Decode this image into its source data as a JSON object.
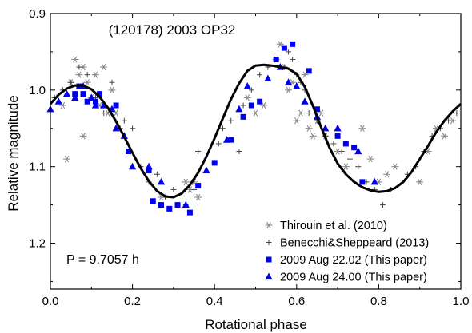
{
  "chart_data": {
    "type": "scatter",
    "title": "(120178) 2003 OP32",
    "xlabel": "Rotational phase",
    "ylabel": "Relative magnitude",
    "xlim": [
      0.0,
      1.0
    ],
    "ylim": [
      0.9,
      1.26
    ],
    "y_inverted": true,
    "x_ticks": [
      "0.0",
      "0.2",
      "0.4",
      "0.6",
      "0.8",
      "1.0"
    ],
    "x_tick_values": [
      0.0,
      0.2,
      0.4,
      0.6,
      0.8,
      1.0
    ],
    "y_ticks": [
      "0.9",
      "1.0",
      "1.1",
      "1.2"
    ],
    "y_tick_values": [
      0.9,
      1.0,
      1.1,
      1.2
    ],
    "grid": false,
    "legend_position": "bottom-right",
    "annotation": "P = 9.7057 h",
    "colors": {
      "blue": "#0000ee",
      "gray": "#8a8a8a",
      "dark": "#444444",
      "curve": "#000000"
    },
    "series": [
      {
        "name": "Thirouin et al. (2010)",
        "marker": "asterisk",
        "x": [
          0.03,
          0.05,
          0.06,
          0.07,
          0.08,
          0.09,
          0.1,
          0.11,
          0.12,
          0.13,
          0.14,
          0.15,
          0.16,
          0.04,
          0.08,
          0.27,
          0.33,
          0.34,
          0.35,
          0.36,
          0.48,
          0.5,
          0.52,
          0.55,
          0.56,
          0.57,
          0.58,
          0.59,
          0.6,
          0.61,
          0.62,
          0.63,
          0.64,
          0.65,
          0.66,
          0.67,
          0.7,
          0.72,
          0.76,
          0.78,
          0.8,
          0.82,
          0.84,
          0.9,
          0.92,
          0.94,
          0.96,
          0.98
        ],
        "y": [
          1.02,
          0.99,
          0.96,
          0.98,
          0.97,
          0.99,
          1.01,
          0.98,
          1.02,
          0.97,
          1.03,
          1.0,
          1.03,
          1.09,
          1.06,
          1.14,
          1.12,
          1.13,
          1.12,
          1.14,
          1.01,
          1.03,
          1.02,
          0.96,
          0.94,
          0.97,
          1.0,
          0.99,
          1.04,
          1.03,
          0.98,
          1.05,
          1.06,
          1.04,
          1.03,
          1.06,
          1.08,
          1.1,
          1.05,
          1.09,
          1.12,
          1.11,
          1.1,
          1.12,
          1.08,
          1.05,
          1.06,
          1.04
        ]
      },
      {
        "name": "Benecchi&Sheppeard (2013)",
        "marker": "plus",
        "x": [
          0.01,
          0.03,
          0.05,
          0.07,
          0.09,
          0.11,
          0.13,
          0.15,
          0.17,
          0.18,
          0.2,
          0.22,
          0.24,
          0.26,
          0.28,
          0.3,
          0.31,
          0.33,
          0.35,
          0.36,
          0.41,
          0.42,
          0.44,
          0.46,
          0.47,
          0.49,
          0.51,
          0.53,
          0.55,
          0.57,
          0.58,
          0.59,
          0.6,
          0.61,
          0.62,
          0.63,
          0.65,
          0.67,
          0.69,
          0.71,
          0.73,
          0.75,
          0.77,
          0.79,
          0.81,
          0.83,
          0.87,
          0.89,
          0.91,
          0.93,
          0.95,
          0.97,
          0.99
        ],
        "y": [
          1.01,
          1.0,
          0.99,
          0.97,
          0.98,
          1.01,
          1.03,
          0.99,
          1.05,
          1.04,
          1.05,
          1.1,
          1.12,
          1.11,
          1.14,
          1.13,
          1.15,
          1.15,
          1.13,
          1.08,
          1.07,
          1.05,
          1.04,
          1.08,
          1.02,
          1.0,
          0.98,
          0.97,
          0.96,
          0.97,
          0.95,
          0.96,
          0.98,
          0.99,
          1.0,
          1.03,
          1.04,
          1.06,
          1.07,
          1.08,
          1.09,
          1.1,
          1.12,
          1.13,
          1.15,
          1.13,
          1.11,
          1.1,
          1.08,
          1.06,
          1.05,
          1.04,
          1.03
        ]
      },
      {
        "name": "2009 Aug 22.02 (This paper)",
        "marker": "square",
        "x": [
          0.06,
          0.07,
          0.08,
          0.09,
          0.11,
          0.12,
          0.16,
          0.19,
          0.24,
          0.25,
          0.27,
          0.29,
          0.31,
          0.34,
          0.36,
          0.4,
          0.44,
          0.47,
          0.49,
          0.51,
          0.55,
          0.57,
          0.59,
          0.63,
          0.65,
          0.7,
          0.72,
          0.74,
          0.76
        ],
        "y": [
          1.005,
          0.995,
          1.005,
          1.015,
          1.015,
          1.005,
          1.02,
          1.08,
          1.105,
          1.145,
          1.15,
          1.155,
          1.15,
          1.16,
          1.125,
          1.095,
          1.065,
          1.035,
          1.02,
          1.015,
          0.96,
          0.945,
          0.94,
          0.975,
          1.025,
          1.06,
          1.07,
          1.075,
          1.12
        ]
      },
      {
        "name": "2009 Aug 24.00 (This paper)",
        "marker": "triangle",
        "x": [
          0.0,
          0.02,
          0.04,
          0.06,
          0.08,
          0.1,
          0.11,
          0.13,
          0.15,
          0.16,
          0.18,
          0.2,
          0.24,
          0.27,
          0.33,
          0.38,
          0.43,
          0.46,
          0.48,
          0.53,
          0.56,
          0.58,
          0.6,
          0.62,
          0.65,
          0.67,
          0.7,
          0.75,
          0.79
        ],
        "y": [
          1.025,
          1.015,
          1.005,
          1.01,
          0.995,
          1.01,
          1.02,
          1.02,
          1.025,
          1.05,
          1.06,
          1.1,
          1.1,
          1.12,
          1.15,
          1.105,
          1.065,
          1.025,
          0.995,
          0.985,
          0.97,
          0.99,
          0.995,
          1.015,
          1.035,
          1.05,
          1.05,
          1.08,
          1.12
        ]
      }
    ],
    "fit_curve": {
      "name": "",
      "period_h": 9.7057,
      "x": [
        0.0,
        0.02,
        0.04,
        0.06,
        0.08,
        0.1,
        0.12,
        0.14,
        0.16,
        0.18,
        0.2,
        0.22,
        0.24,
        0.26,
        0.28,
        0.3,
        0.32,
        0.34,
        0.36,
        0.38,
        0.4,
        0.42,
        0.44,
        0.46,
        0.48,
        0.5,
        0.52,
        0.54,
        0.56,
        0.58,
        0.6,
        0.62,
        0.64,
        0.66,
        0.68,
        0.7,
        0.72,
        0.74,
        0.76,
        0.78,
        0.8,
        0.82,
        0.84,
        0.86,
        0.88,
        0.9,
        0.92,
        0.94,
        0.96,
        0.98,
        1.0
      ],
      "y": [
        1.018,
        1.006,
        0.998,
        0.994,
        0.994,
        0.999,
        1.009,
        1.023,
        1.041,
        1.061,
        1.082,
        1.102,
        1.119,
        1.132,
        1.139,
        1.14,
        1.135,
        1.124,
        1.108,
        1.087,
        1.063,
        1.037,
        1.012,
        0.991,
        0.975,
        0.968,
        0.967,
        0.968,
        0.97,
        0.972,
        0.979,
        0.996,
        1.021,
        1.049,
        1.075,
        1.096,
        1.11,
        1.12,
        1.127,
        1.131,
        1.133,
        1.132,
        1.128,
        1.12,
        1.107,
        1.09,
        1.073,
        1.055,
        1.04,
        1.028,
        1.018
      ]
    }
  }
}
